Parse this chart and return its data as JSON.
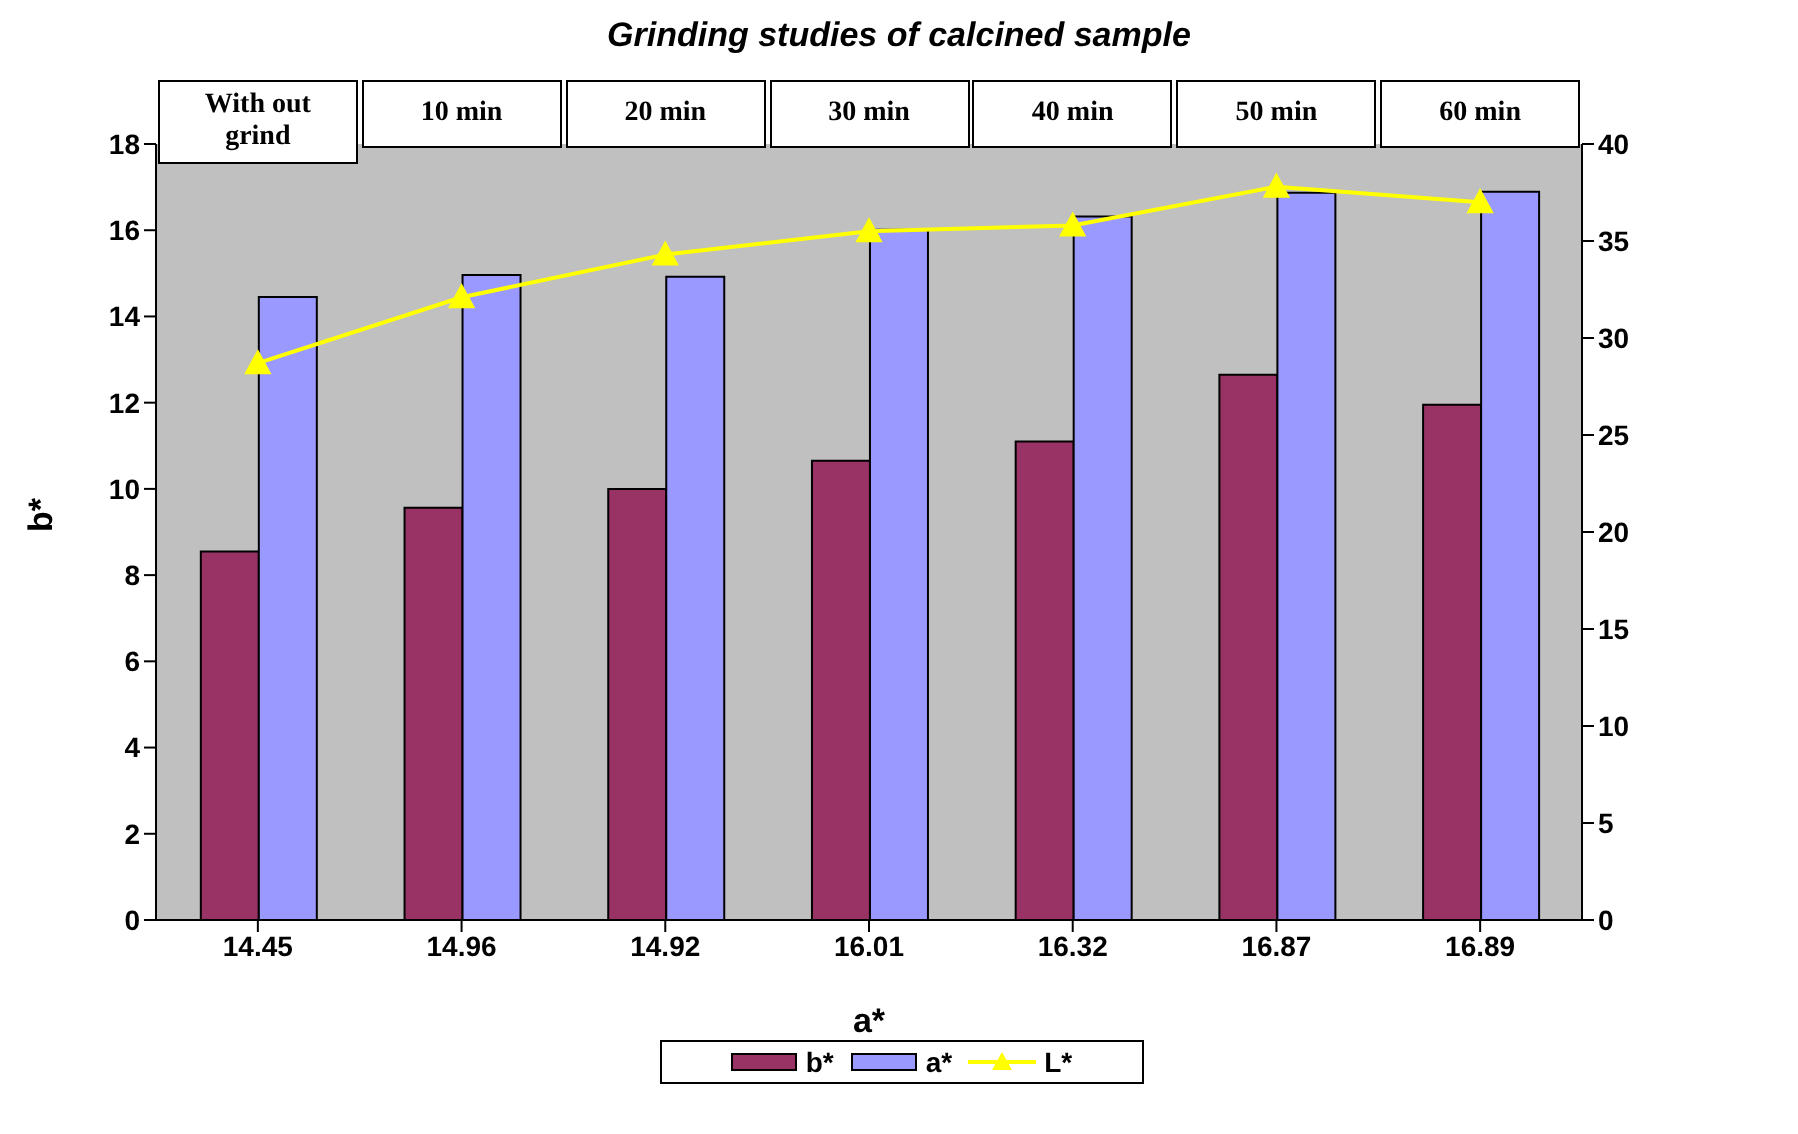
{
  "chart_data": {
    "type": "bar",
    "title": "Grinding studies of calcined sample",
    "xlabel": "a*",
    "ylabel": "b*",
    "categories": [
      "14.45",
      "14.96",
      "14.92",
      "16.01",
      "16.32",
      "16.87",
      "16.89"
    ],
    "series": [
      {
        "name": "b*",
        "color": "#993366",
        "values": [
          8.55,
          9.56,
          10.0,
          10.65,
          11.1,
          12.65,
          11.95
        ]
      },
      {
        "name": "a*",
        "color": "#9999ff",
        "values": [
          14.45,
          14.96,
          14.92,
          16.01,
          16.32,
          16.87,
          16.89
        ]
      },
      {
        "name": "L*",
        "type": "line",
        "axis": "y2",
        "color": "#ffff00",
        "values": [
          28.7,
          32.1,
          34.3,
          35.5,
          35.8,
          37.8,
          37.0
        ]
      }
    ],
    "ylim": [
      0,
      18
    ],
    "yticks": [
      0,
      2,
      4,
      6,
      8,
      10,
      12,
      14,
      16,
      18
    ],
    "y2lim": [
      0,
      40
    ],
    "y2ticks": [
      0,
      5,
      10,
      15,
      20,
      25,
      30,
      35,
      40
    ],
    "annotations": [
      "With out grind",
      "10 min",
      "20 min",
      "30 min",
      "40 min",
      "50 min",
      "60 min"
    ],
    "grid": false,
    "legend": "bottom",
    "marker": "triangle"
  }
}
